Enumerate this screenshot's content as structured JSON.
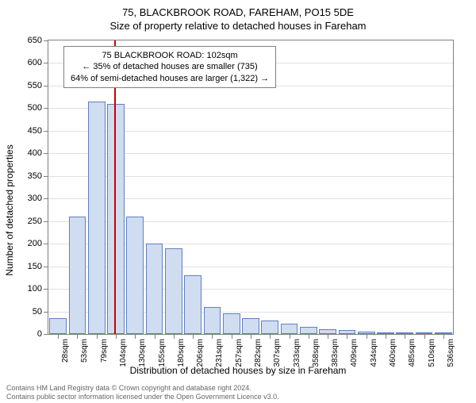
{
  "title_main": "75, BLACKBROOK ROAD, FAREHAM, PO15 5DE",
  "title_sub": "Size of property relative to detached houses in Fareham",
  "annotation": {
    "line1": "75 BLACKBROOK ROAD: 102sqm",
    "line2": "← 35% of detached houses are smaller (735)",
    "line3": "64% of semi-detached houses are larger (1,322) →"
  },
  "y_axis_title": "Number of detached properties",
  "x_axis_title": "Distribution of detached houses by size in Fareham",
  "footer_line1": "Contains HM Land Registry data © Crown copyright and database right 2024.",
  "footer_line2": "Contains public sector information licensed under the Open Government Licence v3.0.",
  "chart": {
    "type": "histogram",
    "background_color": "#ffffff",
    "grid_color": "#e0e0e0",
    "border_color": "#808080",
    "bar_fill": "#d0dcf0",
    "bar_stroke": "#6080c0",
    "marker_color": "#cc0000",
    "marker_x_value": 102,
    "ylim": [
      0,
      650
    ],
    "ytick_step": 50,
    "x_categories": [
      "28sqm",
      "53sqm",
      "79sqm",
      "104sqm",
      "130sqm",
      "155sqm",
      "180sqm",
      "206sqm",
      "231sqm",
      "257sqm",
      "282sqm",
      "307sqm",
      "333sqm",
      "358sqm",
      "383sqm",
      "409sqm",
      "434sqm",
      "460sqm",
      "485sqm",
      "510sqm",
      "536sqm"
    ],
    "x_values": [
      28,
      53,
      79,
      104,
      130,
      155,
      180,
      206,
      231,
      257,
      282,
      307,
      333,
      358,
      383,
      409,
      434,
      460,
      485,
      510,
      536
    ],
    "x_range": [
      15,
      548
    ],
    "bar_values": [
      35,
      260,
      515,
      510,
      260,
      200,
      190,
      130,
      60,
      45,
      35,
      30,
      22,
      16,
      10,
      8,
      6,
      4,
      3,
      2,
      2
    ],
    "bar_width_ratio": 0.9
  }
}
